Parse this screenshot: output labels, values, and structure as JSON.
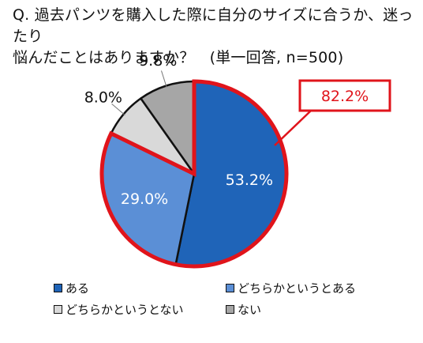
{
  "title_line1": "Q. 過去パンツを購入した際に自分のサイズに合うか、迷ったり",
  "title_line2": "悩んだことはありますか？　(単一回答, n=500)",
  "callout_label": "82.2%",
  "colors": {
    "callout": "#e0141b",
    "separator": "#111111"
  },
  "chart_data": {
    "type": "pie",
    "start": "12 o'clock",
    "direction": "clockwise",
    "slices": [
      {
        "label": "ある",
        "value": 53.2,
        "display": "53.2%",
        "color": "#1f64b8",
        "text_color": "#ffffff"
      },
      {
        "label": "どちらかというとある",
        "value": 29.0,
        "display": "29.0%",
        "color": "#5b8fd6",
        "text_color": "#ffffff"
      },
      {
        "label": "どちらかというとない",
        "value": 8.0,
        "display": "8.0%",
        "color": "#d9d9d9",
        "text_color": "#111111"
      },
      {
        "label": "ない",
        "value": 9.8,
        "display": "9.8%",
        "color": "#a6a6a6",
        "text_color": "#111111"
      }
    ],
    "highlight": {
      "slices": [
        "ある",
        "どちらかというとある"
      ],
      "total": "82.2%"
    },
    "legend_position": "bottom"
  }
}
